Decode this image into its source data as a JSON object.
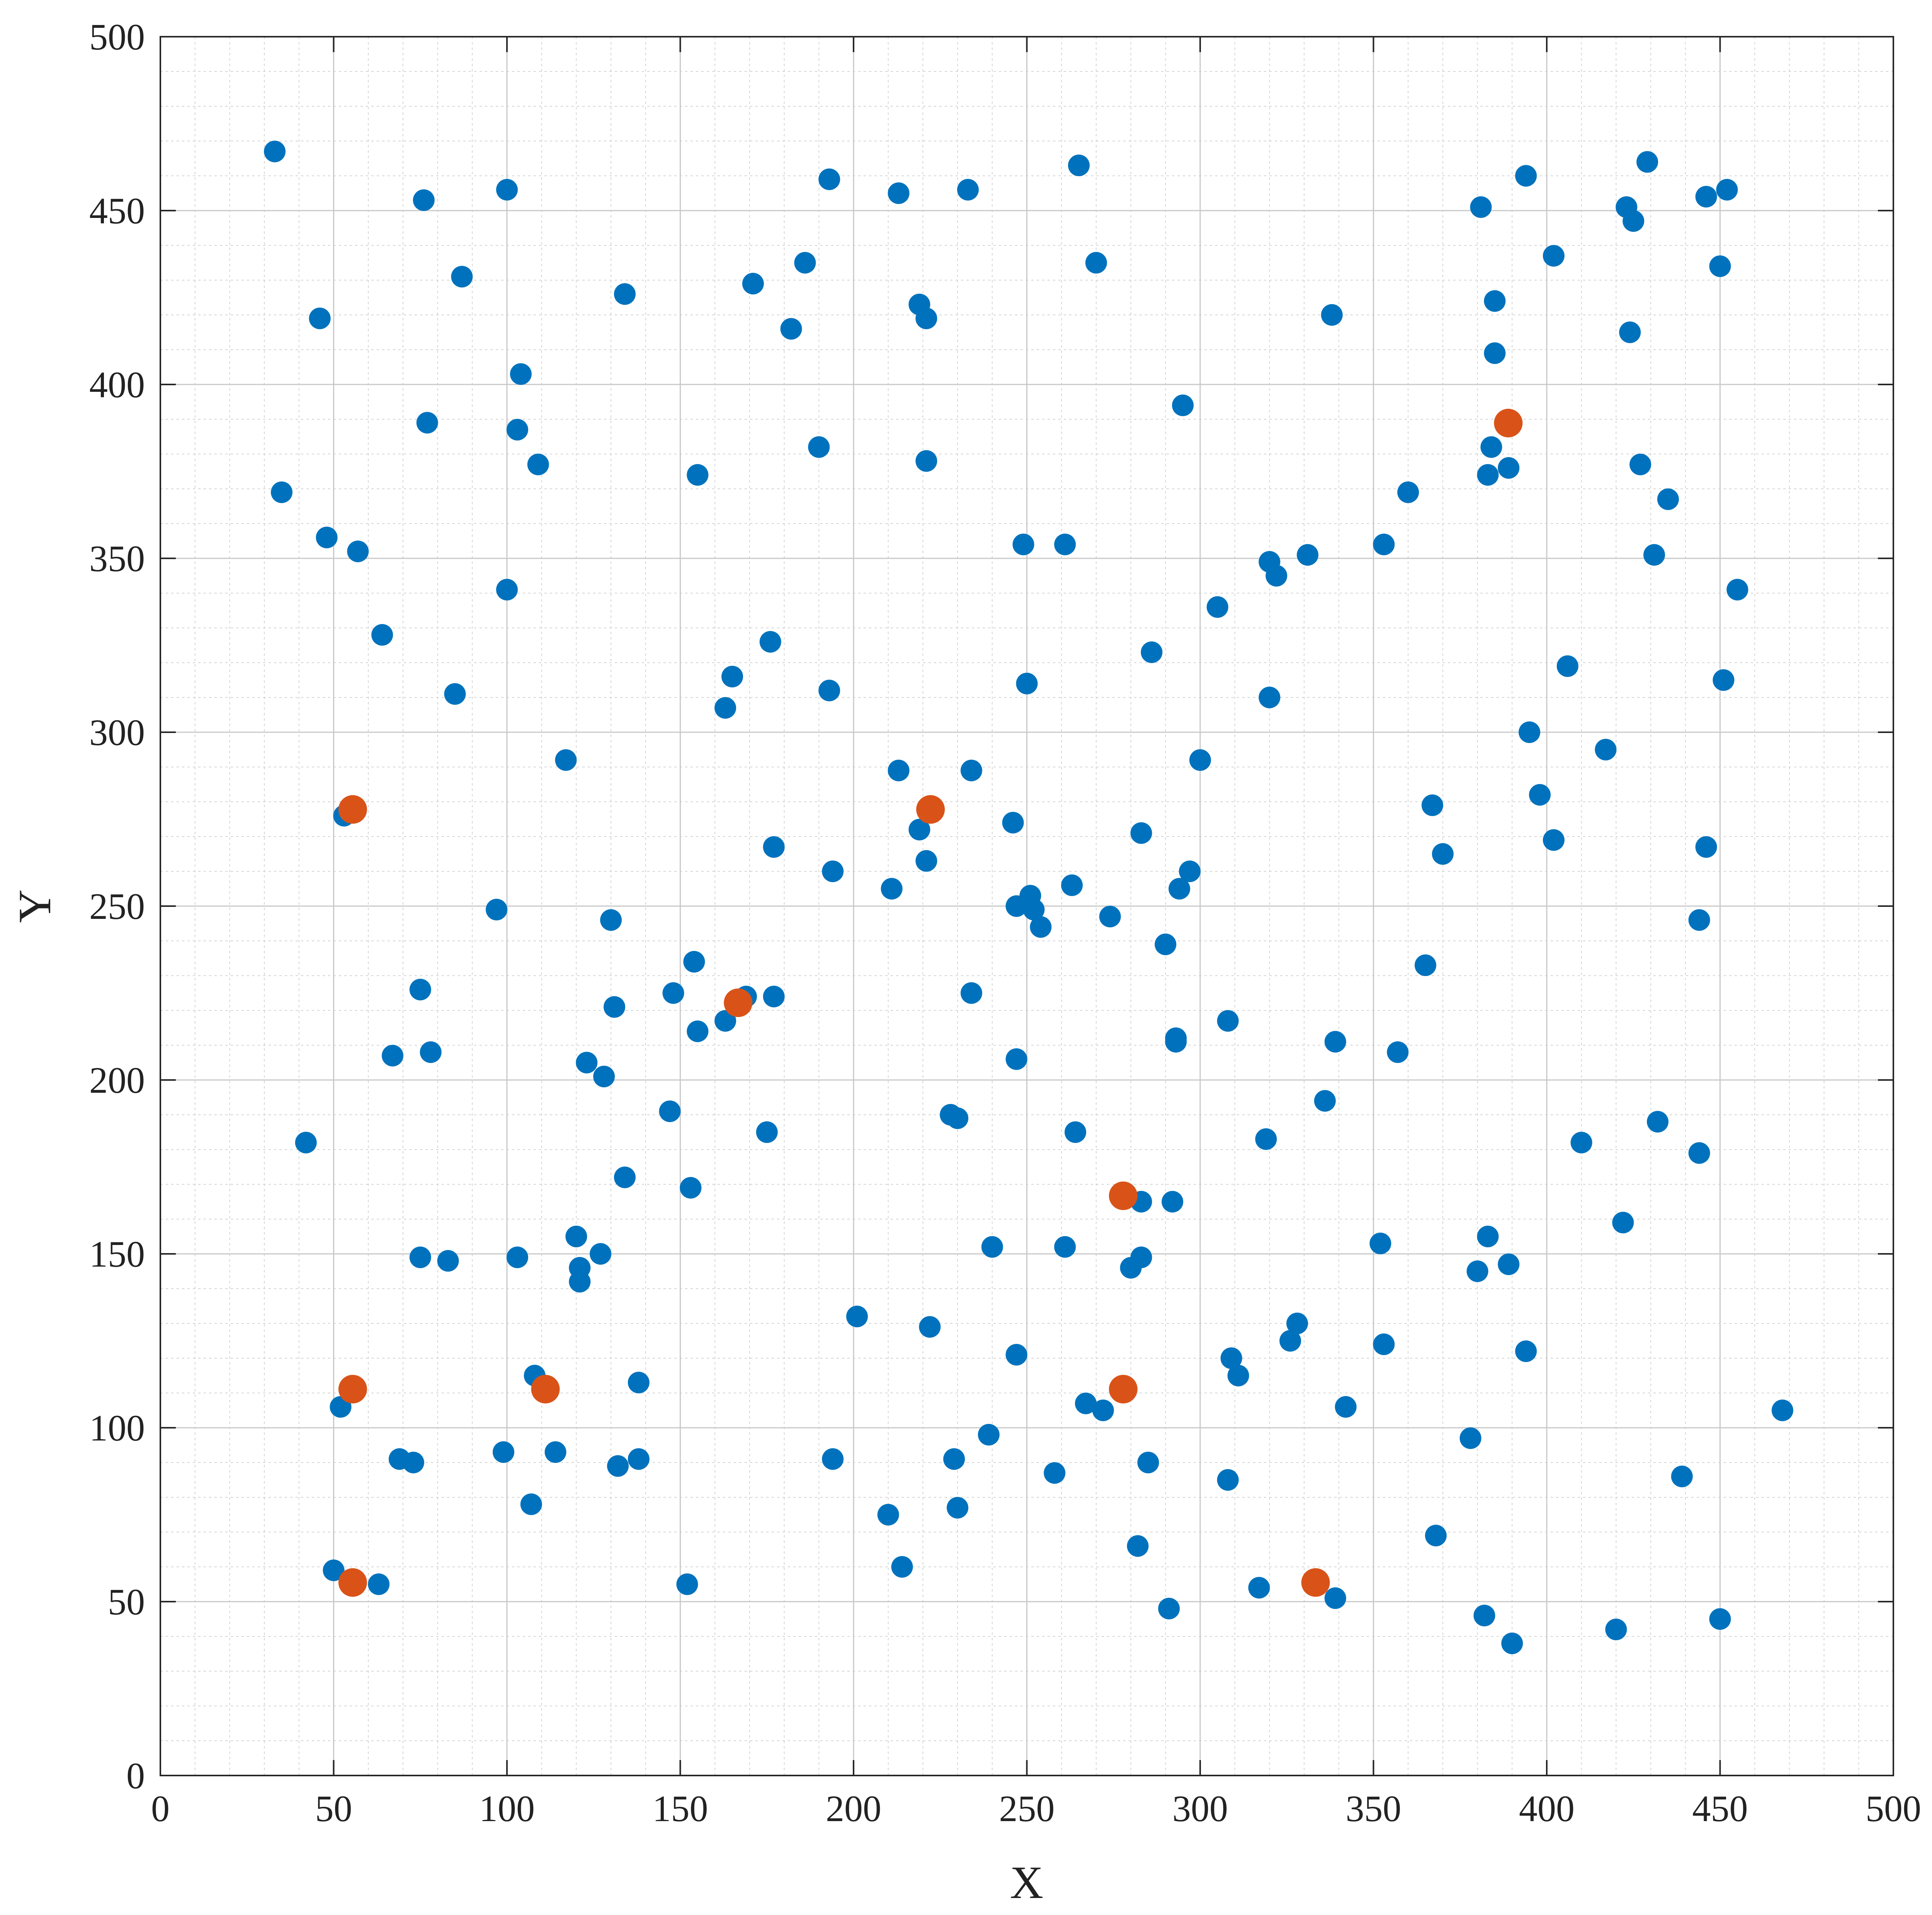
{
  "chart_data": {
    "type": "scatter",
    "xlabel": "X",
    "ylabel": "Y",
    "xlim": [
      0,
      500
    ],
    "ylim": [
      0,
      500
    ],
    "xticks": [
      0,
      50,
      100,
      150,
      200,
      250,
      300,
      350,
      400,
      450,
      500
    ],
    "yticks": [
      0,
      50,
      100,
      150,
      200,
      250,
      300,
      350,
      400,
      450,
      500
    ],
    "grid": true,
    "minor_grid": true,
    "series": [
      {
        "color": "#0072BD",
        "points": [
          [
            33,
            467
          ],
          [
            76,
            453
          ],
          [
            100,
            456
          ],
          [
            87,
            431
          ],
          [
            46,
            419
          ],
          [
            134,
            426
          ],
          [
            104,
            403
          ],
          [
            77,
            389
          ],
          [
            103,
            387
          ],
          [
            109,
            377
          ],
          [
            35,
            369
          ],
          [
            48,
            356
          ],
          [
            57,
            352
          ],
          [
            100,
            341
          ],
          [
            64,
            328
          ],
          [
            85,
            311
          ],
          [
            117,
            292
          ],
          [
            53,
            276
          ],
          [
            193,
            459
          ],
          [
            213,
            455
          ],
          [
            233,
            456
          ],
          [
            265,
            463
          ],
          [
            270,
            435
          ],
          [
            186,
            435
          ],
          [
            171,
            429
          ],
          [
            182,
            416
          ],
          [
            219,
            423
          ],
          [
            221,
            419
          ],
          [
            190,
            382
          ],
          [
            221,
            378
          ],
          [
            155,
            374
          ],
          [
            249,
            354
          ],
          [
            261,
            354
          ],
          [
            176,
            326
          ],
          [
            165,
            316
          ],
          [
            163,
            307
          ],
          [
            193,
            312
          ],
          [
            250,
            314
          ],
          [
            213,
            289
          ],
          [
            234,
            289
          ],
          [
            219,
            272
          ],
          [
            246,
            274
          ],
          [
            177,
            267
          ],
          [
            194,
            260
          ],
          [
            221,
            263
          ],
          [
            211,
            255
          ],
          [
            251,
            253
          ],
          [
            247,
            250
          ],
          [
            252,
            249
          ],
          [
            254,
            244
          ],
          [
            263,
            256
          ],
          [
            338,
            420
          ],
          [
            295,
            394
          ],
          [
            305,
            336
          ],
          [
            320,
            349
          ],
          [
            322,
            345
          ],
          [
            331,
            351
          ],
          [
            286,
            323
          ],
          [
            320,
            310
          ],
          [
            300,
            292
          ],
          [
            283,
            271
          ],
          [
            297,
            260
          ],
          [
            294,
            255
          ],
          [
            274,
            247
          ],
          [
            290,
            239
          ],
          [
            381,
            451
          ],
          [
            394,
            460
          ],
          [
            402,
            437
          ],
          [
            423,
            451
          ],
          [
            424,
            415
          ],
          [
            425,
            447
          ],
          [
            429,
            464
          ],
          [
            446,
            454
          ],
          [
            450,
            434
          ],
          [
            452,
            456
          ],
          [
            385,
            424
          ],
          [
            385,
            409
          ],
          [
            384,
            382
          ],
          [
            383,
            374
          ],
          [
            389,
            376
          ],
          [
            427,
            377
          ],
          [
            435,
            367
          ],
          [
            431,
            351
          ],
          [
            455,
            341
          ],
          [
            360,
            369
          ],
          [
            353,
            354
          ],
          [
            406,
            319
          ],
          [
            451,
            315
          ],
          [
            395,
            300
          ],
          [
            417,
            295
          ],
          [
            398,
            282
          ],
          [
            402,
            269
          ],
          [
            367,
            279
          ],
          [
            370,
            265
          ],
          [
            446,
            267
          ],
          [
            444,
            246
          ],
          [
            365,
            233
          ],
          [
            97,
            249
          ],
          [
            130,
            246
          ],
          [
            75,
            226
          ],
          [
            67,
            207
          ],
          [
            78,
            208
          ],
          [
            131,
            221
          ],
          [
            148,
            225
          ],
          [
            154,
            234
          ],
          [
            155,
            214
          ],
          [
            163,
            217
          ],
          [
            169,
            224
          ],
          [
            177,
            224
          ],
          [
            123,
            205
          ],
          [
            128,
            201
          ],
          [
            147,
            191
          ],
          [
            42,
            182
          ],
          [
            134,
            172
          ],
          [
            153,
            169
          ],
          [
            175,
            185
          ],
          [
            75,
            149
          ],
          [
            83,
            148
          ],
          [
            103,
            149
          ],
          [
            120,
            155
          ],
          [
            121,
            146
          ],
          [
            121,
            142
          ],
          [
            127,
            150
          ],
          [
            234,
            225
          ],
          [
            247,
            206
          ],
          [
            228,
            190
          ],
          [
            230,
            189
          ],
          [
            264,
            185
          ],
          [
            240,
            152
          ],
          [
            261,
            152
          ],
          [
            201,
            132
          ],
          [
            222,
            129
          ],
          [
            247,
            121
          ],
          [
            308,
            217
          ],
          [
            293,
            212
          ],
          [
            293,
            211
          ],
          [
            339,
            211
          ],
          [
            357,
            208
          ],
          [
            336,
            194
          ],
          [
            319,
            183
          ],
          [
            283,
            165
          ],
          [
            292,
            165
          ],
          [
            283,
            149
          ],
          [
            280,
            146
          ],
          [
            352,
            153
          ],
          [
            328,
            130
          ],
          [
            326,
            125
          ],
          [
            353,
            124
          ],
          [
            309,
            120
          ],
          [
            311,
            115
          ],
          [
            383,
            155
          ],
          [
            380,
            145
          ],
          [
            389,
            147
          ],
          [
            422,
            159
          ],
          [
            410,
            182
          ],
          [
            432,
            188
          ],
          [
            444,
            179
          ],
          [
            394,
            122
          ],
          [
            468,
            105
          ],
          [
            108,
            115
          ],
          [
            52,
            106
          ],
          [
            138,
            113
          ],
          [
            69,
            91
          ],
          [
            73,
            90
          ],
          [
            99,
            93
          ],
          [
            114,
            93
          ],
          [
            132,
            89
          ],
          [
            138,
            91
          ],
          [
            107,
            78
          ],
          [
            50,
            59
          ],
          [
            63,
            55
          ],
          [
            152,
            55
          ],
          [
            194,
            91
          ],
          [
            210,
            75
          ],
          [
            214,
            60
          ],
          [
            229,
            91
          ],
          [
            230,
            77
          ],
          [
            239,
            98
          ],
          [
            258,
            87
          ],
          [
            267,
            107
          ],
          [
            272,
            105
          ],
          [
            285,
            90
          ],
          [
            282,
            66
          ],
          [
            291,
            48
          ],
          [
            308,
            85
          ],
          [
            317,
            54
          ],
          [
            339,
            51
          ],
          [
            342,
            106
          ],
          [
            368,
            69
          ],
          [
            378,
            97
          ],
          [
            382,
            46
          ],
          [
            390,
            38
          ],
          [
            420,
            42
          ],
          [
            439,
            86
          ],
          [
            450,
            45
          ]
        ]
      },
      {
        "color": "#D95319",
        "points": [
          [
            55.5,
            277.8
          ],
          [
            222.2,
            277.8
          ],
          [
            388.9,
            388.9
          ],
          [
            166.7,
            222.2
          ],
          [
            277.8,
            166.7
          ],
          [
            55.5,
            111.1
          ],
          [
            111.1,
            111.1
          ],
          [
            277.8,
            111.1
          ],
          [
            55.5,
            55.5
          ],
          [
            333.3,
            55.5
          ]
        ]
      }
    ]
  }
}
